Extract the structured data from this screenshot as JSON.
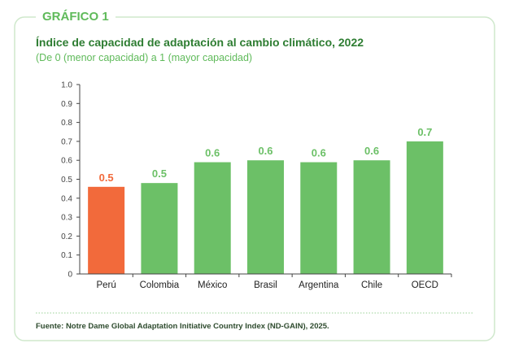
{
  "tag": "GRÁFICO 1",
  "title": "Índice de capacidad de adaptación al cambio climático, 2022",
  "subtitle": "(De 0 (menor capacidad) a 1 (mayor capacidad)",
  "source": "Fuente: Notre Dame Global Adaptation Initiative Country Index (ND-GAIN), 2025.",
  "colors": {
    "accent": "#5fba5a",
    "bar_default": "#6cc067",
    "bar_highlight": "#f26a3b",
    "frame": "#cfe8cc"
  },
  "chart_data": {
    "type": "bar",
    "categories": [
      "Perú",
      "Colombia",
      "México",
      "Brasil",
      "Argentina",
      "Chile",
      "OECD"
    ],
    "values": [
      0.46,
      0.48,
      0.59,
      0.6,
      0.59,
      0.6,
      0.7
    ],
    "data_labels": [
      "0.5",
      "0.5",
      "0.6",
      "0.6",
      "0.6",
      "0.6",
      "0.7"
    ],
    "highlight": "Perú",
    "ylim": [
      0,
      1
    ],
    "yticks": [
      "0",
      "0.1",
      "0.2",
      "0.3",
      "0.4",
      "0.5",
      "0.6",
      "0.7",
      "0.8",
      "0.9",
      "1.0"
    ],
    "xlabel": "",
    "ylabel": "",
    "grid": false
  }
}
